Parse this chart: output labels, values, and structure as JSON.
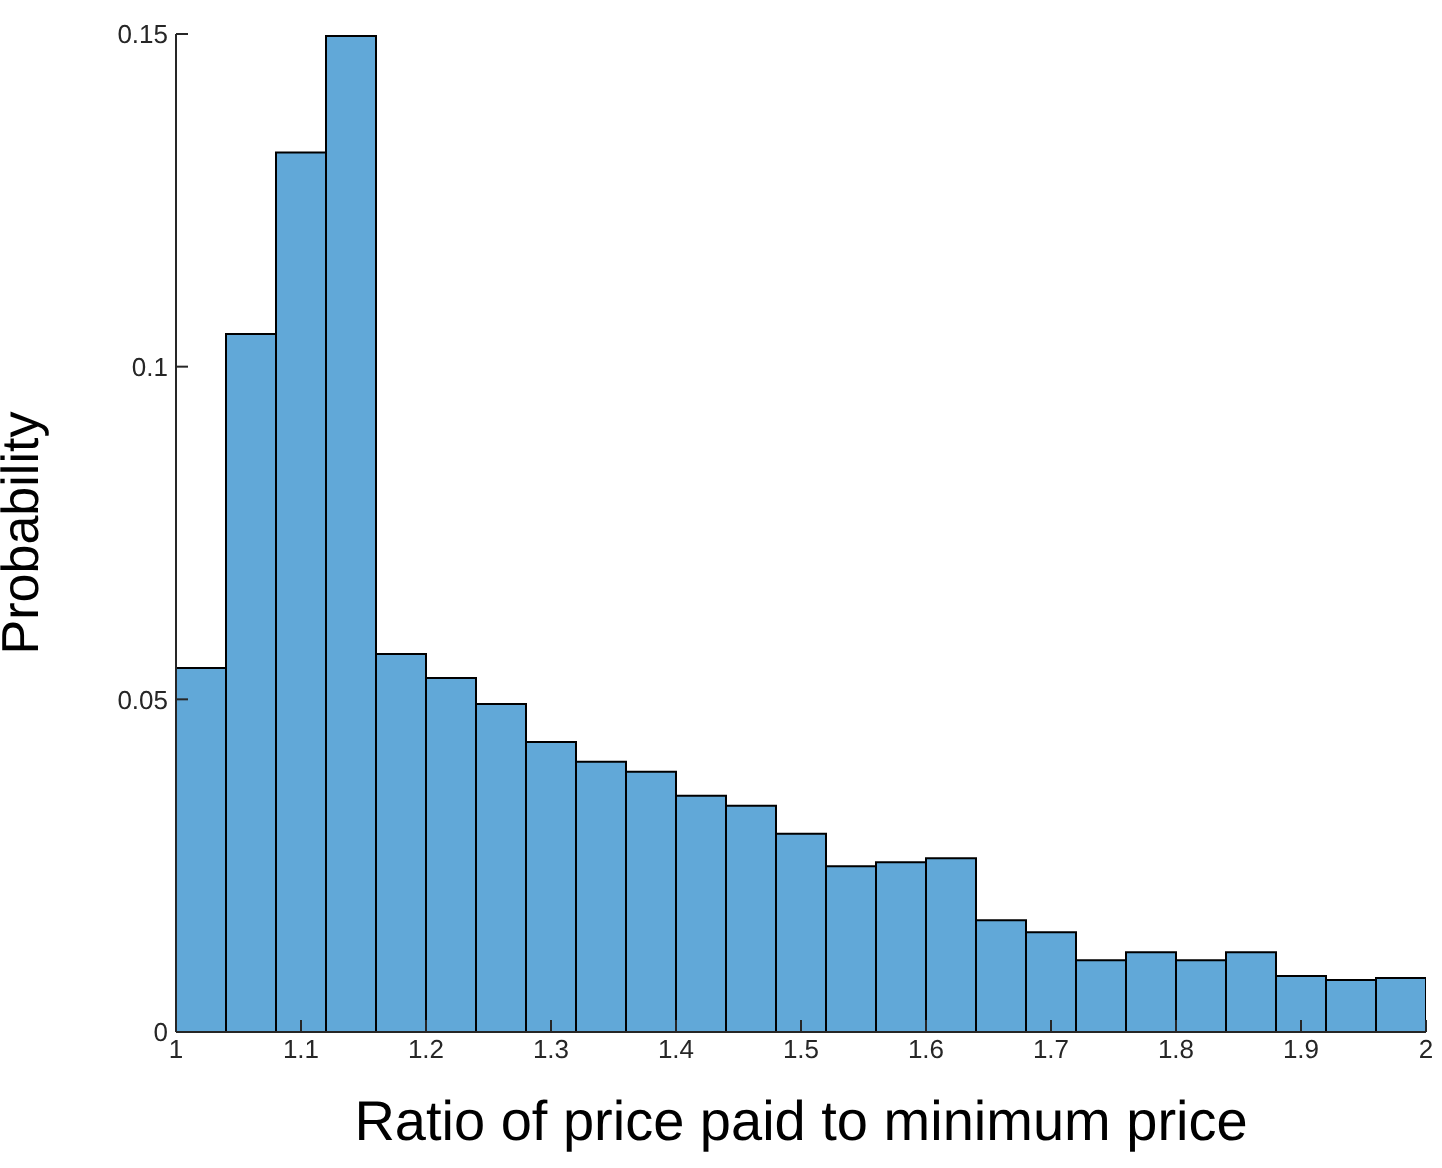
{
  "chart_data": {
    "type": "histogram",
    "xlabel": "Ratio of price paid to minimum price",
    "ylabel": "Probability",
    "bins": [
      1,
      1.04,
      1.08,
      1.12,
      1.16,
      1.2,
      1.24,
      1.28,
      1.32,
      1.36,
      1.4,
      1.44,
      1.48,
      1.52,
      1.56,
      1.6,
      1.64,
      1.68,
      1.72,
      1.76,
      1.8,
      1.84,
      1.88,
      1.92,
      1.96,
      2
    ],
    "values": [
      0.0547,
      0.1049,
      0.1322,
      0.1497,
      0.0568,
      0.0532,
      0.0493,
      0.0436,
      0.0406,
      0.0391,
      0.0355,
      0.034,
      0.0298,
      0.0249,
      0.0255,
      0.0261,
      0.0168,
      0.015,
      0.0108,
      0.012,
      0.0108,
      0.012,
      0.0084,
      0.0078,
      0.0081
    ],
    "color": "#61a8d8",
    "xlim": [
      1,
      2
    ],
    "xticks": [
      1,
      1.1,
      1.2,
      1.3,
      1.4,
      1.5,
      1.6,
      1.7,
      1.8,
      1.9,
      2
    ],
    "ylim": [
      0,
      0.15
    ],
    "yticks": [
      0,
      0.05,
      0.1,
      0.15
    ]
  }
}
